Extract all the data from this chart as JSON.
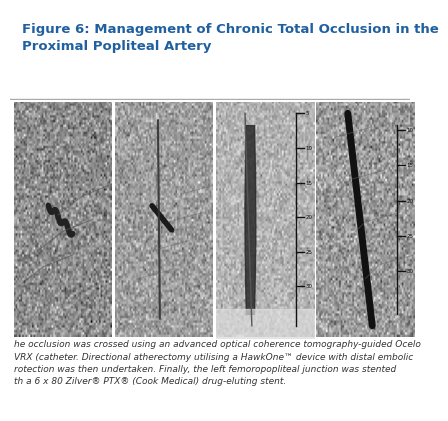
{
  "title_line1": "Figure 6: Management of Chronic Total Occlusion in the",
  "title_line2": "Proximal Popliteal Artery",
  "title_color": "#2060a0",
  "title_fontsize": 9.5,
  "bg_color": "#ffffff",
  "caption_text": "he occlusion was crossed using an advanced optical coherence tomography-guided Ocelo\nVRX (catheter. Directional atherectomy utilising a HawkOne™ device with distal embolic\nrotection was then undertaken. Finally, the left femoropopliteal junction was stented\nth a 6 x 80 Zilver® PTX® (Cook Medical) drug-eluting stent.",
  "caption_fontsize": 6.5,
  "caption_color": "#333333",
  "divider_color": "#aaaaaa",
  "image_bg_colors": [
    "#b0b8b0",
    "#b8c0b8",
    "#c0c8c0",
    "#b8c0b8"
  ],
  "num_panels": 4,
  "panel_border_color": "#888888"
}
